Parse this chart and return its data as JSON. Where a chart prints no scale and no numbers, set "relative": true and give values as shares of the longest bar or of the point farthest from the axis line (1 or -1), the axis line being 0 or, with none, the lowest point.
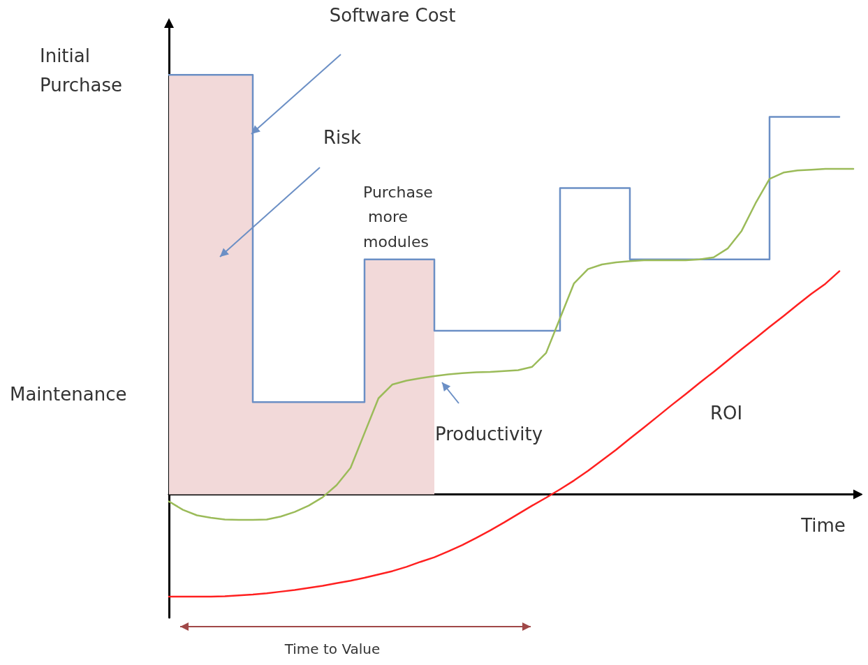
{
  "chart_data": {
    "type": "line",
    "relative": true,
    "xlabel": "Time",
    "marker": "none",
    "grid": false,
    "categories": [
      null,
      null,
      null,
      null,
      null,
      null,
      null,
      null,
      null,
      null,
      null,
      null,
      null,
      null,
      null,
      null,
      null,
      null,
      null,
      null,
      null,
      null,
      null,
      null,
      null,
      null,
      null,
      null,
      null,
      null,
      null,
      null,
      null,
      null,
      null,
      null,
      null,
      null,
      null,
      null,
      null,
      null,
      null,
      null,
      null,
      null,
      null,
      null,
      null,
      null
    ],
    "series": [
      {
        "type": "area",
        "color": "#f2d9d9",
        "values": [
          1.0,
          1.0,
          1.0,
          1.0,
          1.0,
          1.0,
          1.0,
          0.22,
          0.22,
          0.22,
          0.22,
          0.22,
          0.22,
          0.22,
          0.22,
          0.56,
          0.56,
          0.56,
          0.56,
          0.56,
          null,
          null,
          null,
          null,
          null,
          null,
          null,
          null,
          null,
          null,
          null,
          null,
          null,
          null,
          null,
          null,
          null,
          null,
          null,
          null,
          null,
          null,
          null,
          null,
          null,
          null,
          null,
          null,
          null,
          null
        ]
      },
      {
        "type": "step",
        "color": "#6b8fc5",
        "values": [
          1.0,
          1.0,
          1.0,
          1.0,
          1.0,
          1.0,
          1.0,
          0.22,
          0.22,
          0.22,
          0.22,
          0.22,
          0.22,
          0.22,
          0.22,
          0.56,
          0.56,
          0.56,
          0.56,
          0.56,
          0.39,
          0.39,
          0.39,
          0.39,
          0.39,
          0.39,
          0.39,
          0.39,
          0.39,
          0.73,
          0.73,
          0.73,
          0.73,
          0.73,
          0.56,
          0.56,
          0.56,
          0.56,
          0.56,
          0.56,
          0.56,
          0.56,
          0.56,
          0.56,
          0.9,
          0.9,
          0.9,
          0.9,
          0.9,
          null
        ]
      },
      {
        "color": "#9bbb59",
        "values": [
          -0.017,
          -0.037,
          -0.05,
          -0.056,
          -0.06,
          -0.061,
          -0.061,
          -0.06,
          -0.053,
          -0.042,
          -0.027,
          -0.007,
          0.022,
          0.063,
          0.146,
          0.229,
          0.262,
          0.271,
          0.277,
          0.282,
          0.286,
          0.289,
          0.291,
          0.292,
          0.294,
          0.296,
          0.304,
          0.337,
          0.42,
          0.503,
          0.537,
          0.548,
          0.553,
          0.556,
          0.558,
          0.558,
          0.558,
          0.558,
          0.56,
          0.565,
          0.586,
          0.628,
          0.694,
          0.752,
          0.767,
          0.772,
          0.774,
          0.776,
          0.776,
          0.776
        ]
      },
      {
        "color": "#ff2020",
        "values": [
          -0.244,
          -0.244,
          -0.244,
          -0.244,
          -0.243,
          -0.241,
          -0.239,
          -0.236,
          -0.232,
          -0.228,
          -0.223,
          -0.218,
          -0.212,
          -0.206,
          -0.199,
          -0.191,
          -0.183,
          -0.173,
          -0.161,
          -0.15,
          -0.136,
          -0.121,
          -0.104,
          -0.086,
          -0.067,
          -0.047,
          -0.027,
          -0.008,
          0.012,
          0.033,
          0.056,
          0.081,
          0.106,
          0.133,
          0.159,
          0.186,
          0.213,
          0.239,
          0.266,
          0.292,
          0.319,
          0.346,
          0.372,
          0.399,
          0.425,
          0.452,
          0.478,
          0.502,
          0.532,
          null
        ]
      }
    ],
    "annotations": [
      "Software Cost",
      "Initial Purchase",
      "Risk",
      "Purchase more modules",
      "Maintenance",
      "Productivity",
      "ROI",
      "Time to Value"
    ]
  }
}
